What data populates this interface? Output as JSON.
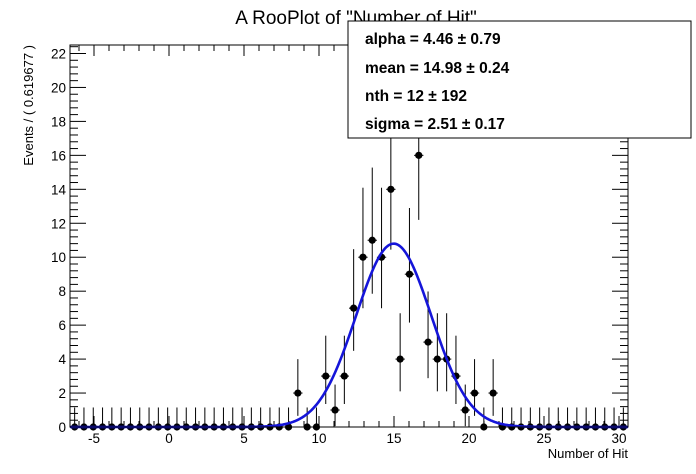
{
  "chart_data": {
    "type": "scatter",
    "title": "A RooPlot of \"Number of Hit\"",
    "xlabel": "Number of Hit",
    "ylabel": "Events / ( 0.619677 )",
    "xlim": [
      -6.6,
      30.6
    ],
    "ylim": [
      0,
      22.5
    ],
    "x_ticks": [
      -5,
      0,
      5,
      10,
      15,
      20,
      25,
      30
    ],
    "y_ticks": [
      0,
      2,
      4,
      6,
      8,
      10,
      12,
      14,
      16,
      18,
      20,
      22
    ],
    "grid": false,
    "series": [
      {
        "kind": "points-with-errors",
        "color": "#000000",
        "x": [
          -6.29,
          -5.67,
          -5.05,
          -4.43,
          -3.81,
          -3.19,
          -2.57,
          -1.95,
          -1.33,
          -0.71,
          -0.09,
          0.53,
          1.15,
          1.77,
          2.39,
          3.01,
          3.63,
          4.25,
          4.87,
          5.49,
          6.11,
          6.73,
          7.35,
          7.97,
          8.59,
          9.21,
          9.83,
          10.45,
          11.07,
          11.69,
          12.31,
          12.93,
          13.55,
          14.17,
          14.79,
          15.41,
          16.03,
          16.65,
          17.27,
          17.89,
          18.51,
          19.13,
          19.75,
          20.37,
          20.99,
          21.61,
          22.23,
          22.85,
          23.47,
          24.09,
          24.71,
          25.33,
          25.95,
          26.57,
          27.19,
          27.81,
          28.43,
          29.05,
          29.67,
          30.29
        ],
        "y": [
          0,
          0,
          0,
          0,
          0,
          0,
          0,
          0,
          0,
          0,
          0,
          0,
          0,
          0,
          0,
          0,
          0,
          0,
          0,
          0,
          0,
          0,
          0,
          0,
          2,
          0,
          0,
          3,
          1,
          3,
          7,
          10,
          11,
          10,
          14,
          4,
          9,
          16,
          5,
          4,
          4,
          3,
          1,
          2,
          0,
          2,
          0,
          0,
          0,
          0,
          0,
          0,
          0,
          0,
          0,
          0,
          0,
          0,
          0,
          0
        ]
      },
      {
        "kind": "fit-curve",
        "color": "#1515d9",
        "model": "crystal-ball",
        "params": {
          "alpha": 4.46,
          "mean": 14.98,
          "nth": 12,
          "sigma": 2.51
        },
        "peak": 10.8
      }
    ]
  },
  "stats_box": {
    "lines": [
      "alpha =  4.46 ± 0.79",
      "mean =  14.98 ± 0.24",
      "nth =  12 ± 192",
      "sigma =  2.51 ± 0.17"
    ]
  }
}
